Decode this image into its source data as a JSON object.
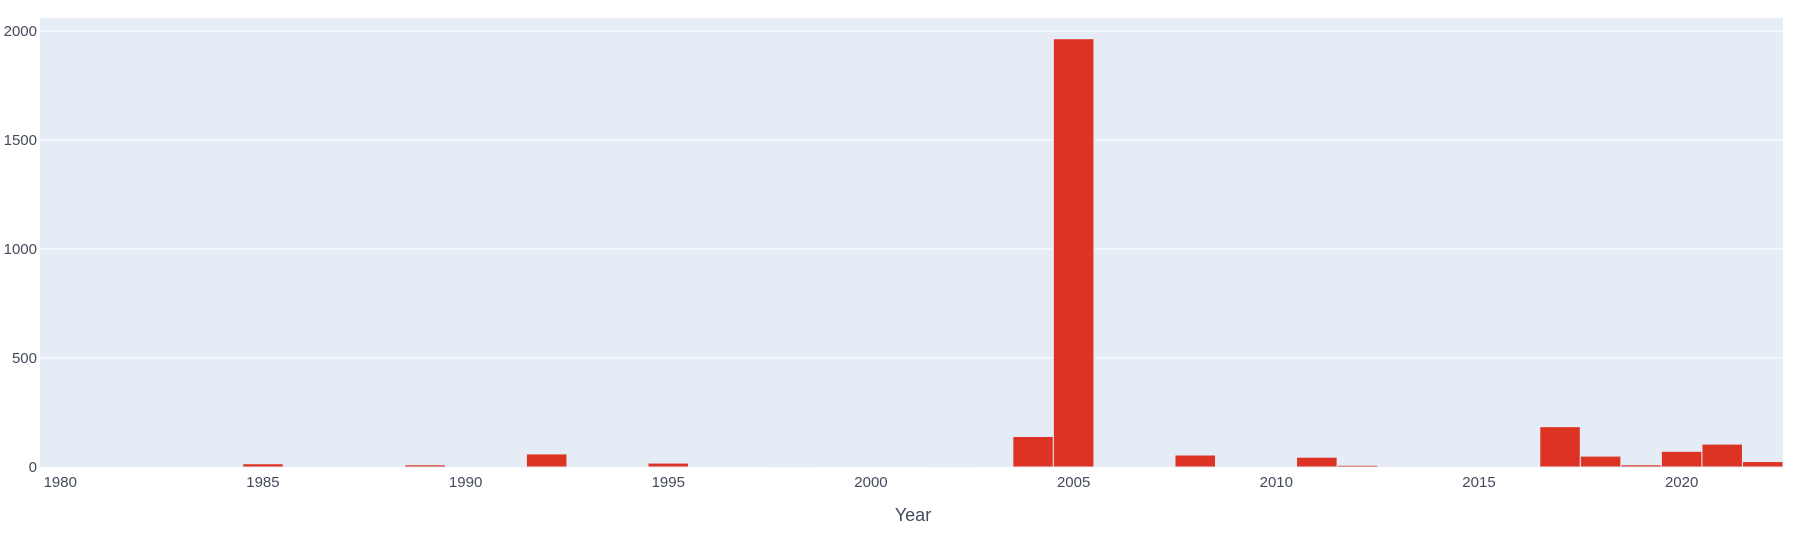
{
  "chart_data": {
    "type": "bar",
    "title": "",
    "xlabel": "Year",
    "ylabel": "",
    "xlim": [
      1979.5,
      2022.5
    ],
    "ylim": [
      0,
      2060
    ],
    "x_ticks": [
      "1980",
      "1985",
      "1990",
      "1995",
      "2000",
      "2005",
      "2010",
      "2015",
      "2020"
    ],
    "y_ticks": [
      "0",
      "500",
      "1000",
      "1500",
      "2000"
    ],
    "grid": true,
    "bar_color": "#DC3324",
    "plot_background": "#E5ECF6",
    "bars": [
      {
        "year": 1985,
        "value": 15
      },
      {
        "year": 1989,
        "value": 10
      },
      {
        "year": 1992,
        "value": 60
      },
      {
        "year": 1995,
        "value": 18
      },
      {
        "year": 1998,
        "value": 4
      },
      {
        "year": 2002,
        "value": 3
      },
      {
        "year": 2004,
        "value": 140
      },
      {
        "year": 2005,
        "value": 1965
      },
      {
        "year": 2008,
        "value": 55
      },
      {
        "year": 2011,
        "value": 45
      },
      {
        "year": 2012,
        "value": 8
      },
      {
        "year": 2017,
        "value": 185
      },
      {
        "year": 2018,
        "value": 50
      },
      {
        "year": 2019,
        "value": 10
      },
      {
        "year": 2020,
        "value": 72
      },
      {
        "year": 2021,
        "value": 105
      },
      {
        "year": 2022,
        "value": 25
      }
    ]
  }
}
